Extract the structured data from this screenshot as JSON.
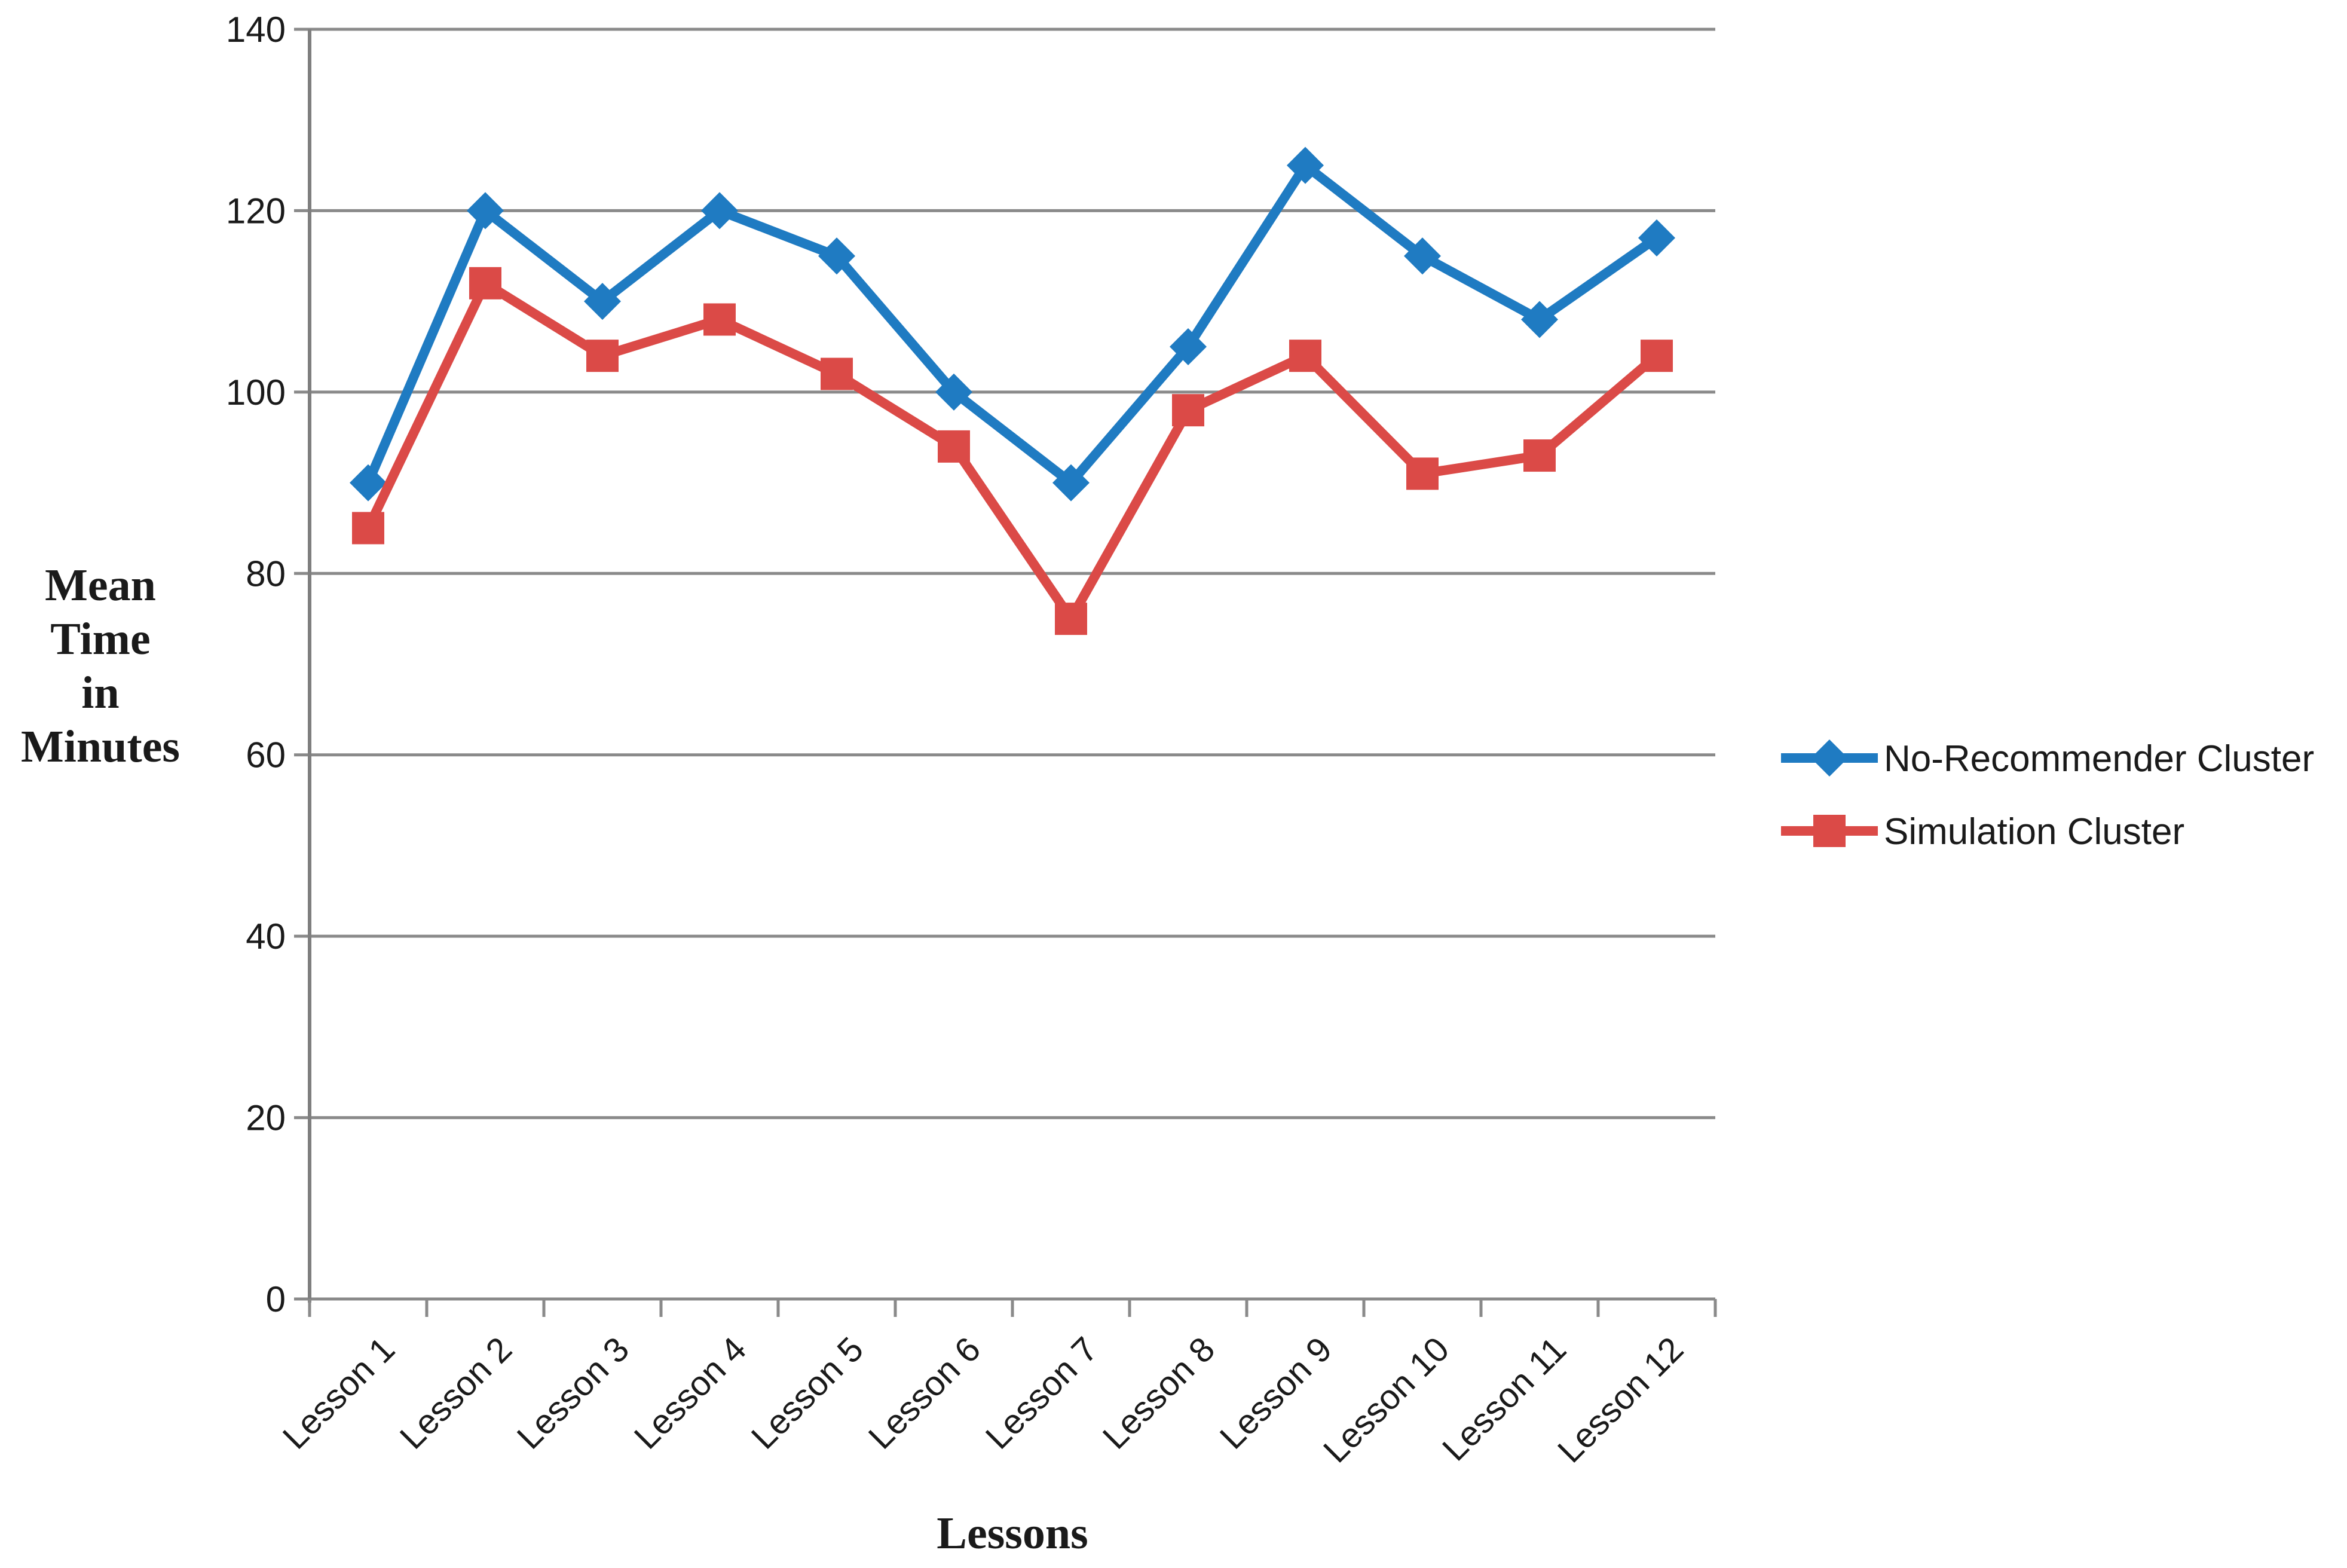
{
  "chart_data": {
    "type": "line",
    "title": "",
    "xlabel": "Lessons",
    "ylabel": "Mean Time in Minutes",
    "ylabel_lines": [
      "Mean",
      "Time",
      "in",
      "Minutes"
    ],
    "categories": [
      "Lesson 1",
      "Lesson 2",
      "Lesson 3",
      "Lesson 4",
      "Lesson 5",
      "Lesson 6",
      "Lesson 7",
      "Lesson 8",
      "Lesson 9",
      "Lesson 10",
      "Lesson 11",
      "Lesson 12"
    ],
    "series": [
      {
        "name": "No-Recommender Cluster",
        "color": "#1f7bc2",
        "marker": "diamond",
        "values": [
          90,
          120,
          110,
          120,
          115,
          100,
          90,
          105,
          125,
          115,
          108,
          117
        ]
      },
      {
        "name": "Simulation Cluster",
        "color": "#db4a47",
        "marker": "square",
        "values": [
          85,
          112,
          104,
          108,
          102,
          94,
          75,
          98,
          104,
          91,
          93,
          104
        ]
      }
    ],
    "y_axis": {
      "min": 0,
      "max": 140,
      "step": 20,
      "tick_labels": [
        "0",
        "20",
        "40",
        "60",
        "80",
        "100",
        "120",
        "140"
      ]
    },
    "grid": "horizontal",
    "legend_position": "right"
  },
  "colors": {
    "grid": "#8a8a8a",
    "axis": "#7f7f7f",
    "text": "#1a1a1a"
  }
}
